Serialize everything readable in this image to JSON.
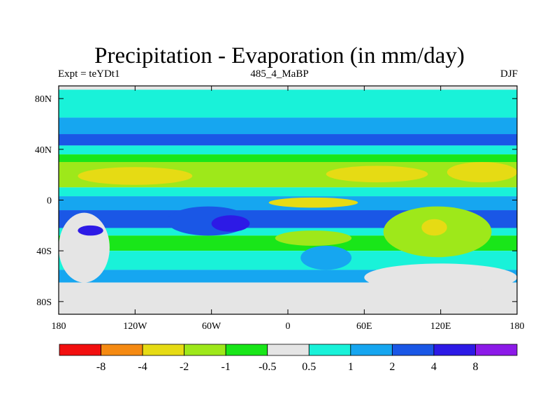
{
  "chart_data": {
    "type": "heatmap",
    "title": "Precipitation - Evaporation (in mm/day)",
    "subtitle_left": "Expt = teYDt1",
    "subtitle_center": "485_4_MaBP",
    "subtitle_right": "DJF",
    "xlabel": "",
    "ylabel": "",
    "x_range": [
      -180,
      180
    ],
    "y_range": [
      -90,
      90
    ],
    "x_ticks": [
      {
        "value": -180,
        "label": "180"
      },
      {
        "value": -120,
        "label": "120W"
      },
      {
        "value": -60,
        "label": "60W"
      },
      {
        "value": 0,
        "label": "0"
      },
      {
        "value": 60,
        "label": "60E"
      },
      {
        "value": 120,
        "label": "120E"
      },
      {
        "value": 180,
        "label": "180"
      }
    ],
    "y_ticks": [
      {
        "value": 80,
        "label": "80N"
      },
      {
        "value": 40,
        "label": "40N"
      },
      {
        "value": 0,
        "label": "0"
      },
      {
        "value": -40,
        "label": "40S"
      },
      {
        "value": -80,
        "label": "80S"
      }
    ],
    "colorbar": {
      "labels": [
        "-8",
        "-4",
        "-2",
        "-1",
        "-0.5",
        "0.5",
        "1",
        "2",
        "4",
        "8"
      ],
      "colors": [
        "#f20f0f",
        "#f58a12",
        "#e6db14",
        "#9ee81a",
        "#19e619",
        "#e5e5e5",
        "#19f2d9",
        "#16a6f0",
        "#1a57e6",
        "#2d1ae6",
        "#8c1ae8"
      ],
      "orientation": "horizontal",
      "placement": "bottom"
    },
    "bands": [
      {
        "lat": [
          90,
          87
        ],
        "value": 0.0
      },
      {
        "lat": [
          87,
          65
        ],
        "value": 0.8
      },
      {
        "lat": [
          65,
          52
        ],
        "value": 1.5
      },
      {
        "lat": [
          52,
          43
        ],
        "value": 3.0
      },
      {
        "lat": [
          43,
          36
        ],
        "value": 0.75
      },
      {
        "lat": [
          36,
          30
        ],
        "value": -0.7
      },
      {
        "lat": [
          30,
          10
        ],
        "value": -1.5
      },
      {
        "lat": [
          10,
          3
        ],
        "value": 0.7
      },
      {
        "lat": [
          3,
          -8
        ],
        "value": 1.5
      },
      {
        "lat": [
          -8,
          -22
        ],
        "value": 3.0
      },
      {
        "lat": [
          -22,
          -28
        ],
        "value": 0.8
      },
      {
        "lat": [
          -28,
          -40
        ],
        "value": -0.7
      },
      {
        "lat": [
          -40,
          -55
        ],
        "value": 0.8
      },
      {
        "lat": [
          -55,
          -65
        ],
        "value": 1.5
      },
      {
        "lat": [
          -65,
          -90
        ],
        "value": 0.0
      }
    ],
    "features": [
      {
        "lon": [
          -165,
          -75
        ],
        "lat": [
          26,
          12
        ],
        "value": -3
      },
      {
        "lon": [
          30,
          110
        ],
        "lat": [
          27,
          14
        ],
        "value": -3
      },
      {
        "lon": [
          125,
          180
        ],
        "lat": [
          30,
          14
        ],
        "value": -3
      },
      {
        "lon": [
          -15,
          55
        ],
        "lat": [
          2,
          -6
        ],
        "value": -3
      },
      {
        "lon": [
          -180,
          -140
        ],
        "lat": [
          -10,
          -65
        ],
        "value": 0.0
      },
      {
        "lon": [
          -165,
          -145
        ],
        "lat": [
          -20,
          -28
        ],
        "value": 6
      },
      {
        "lon": [
          -95,
          -30
        ],
        "lat": [
          -5,
          -28
        ],
        "value": 3
      },
      {
        "lon": [
          -60,
          -30
        ],
        "lat": [
          -12,
          -25
        ],
        "value": 6
      },
      {
        "lon": [
          -10,
          50
        ],
        "lat": [
          -24,
          -36
        ],
        "value": -1.5
      },
      {
        "lon": [
          10,
          50
        ],
        "lat": [
          -36,
          -55
        ],
        "value": 1.5
      },
      {
        "lon": [
          75,
          160
        ],
        "lat": [
          -5,
          -45
        ],
        "value": -1.5
      },
      {
        "lon": [
          105,
          125
        ],
        "lat": [
          -15,
          -28
        ],
        "value": -3
      },
      {
        "lon": [
          60,
          180
        ],
        "lat": [
          -50,
          -72
        ],
        "value": 0.0
      }
    ]
  }
}
